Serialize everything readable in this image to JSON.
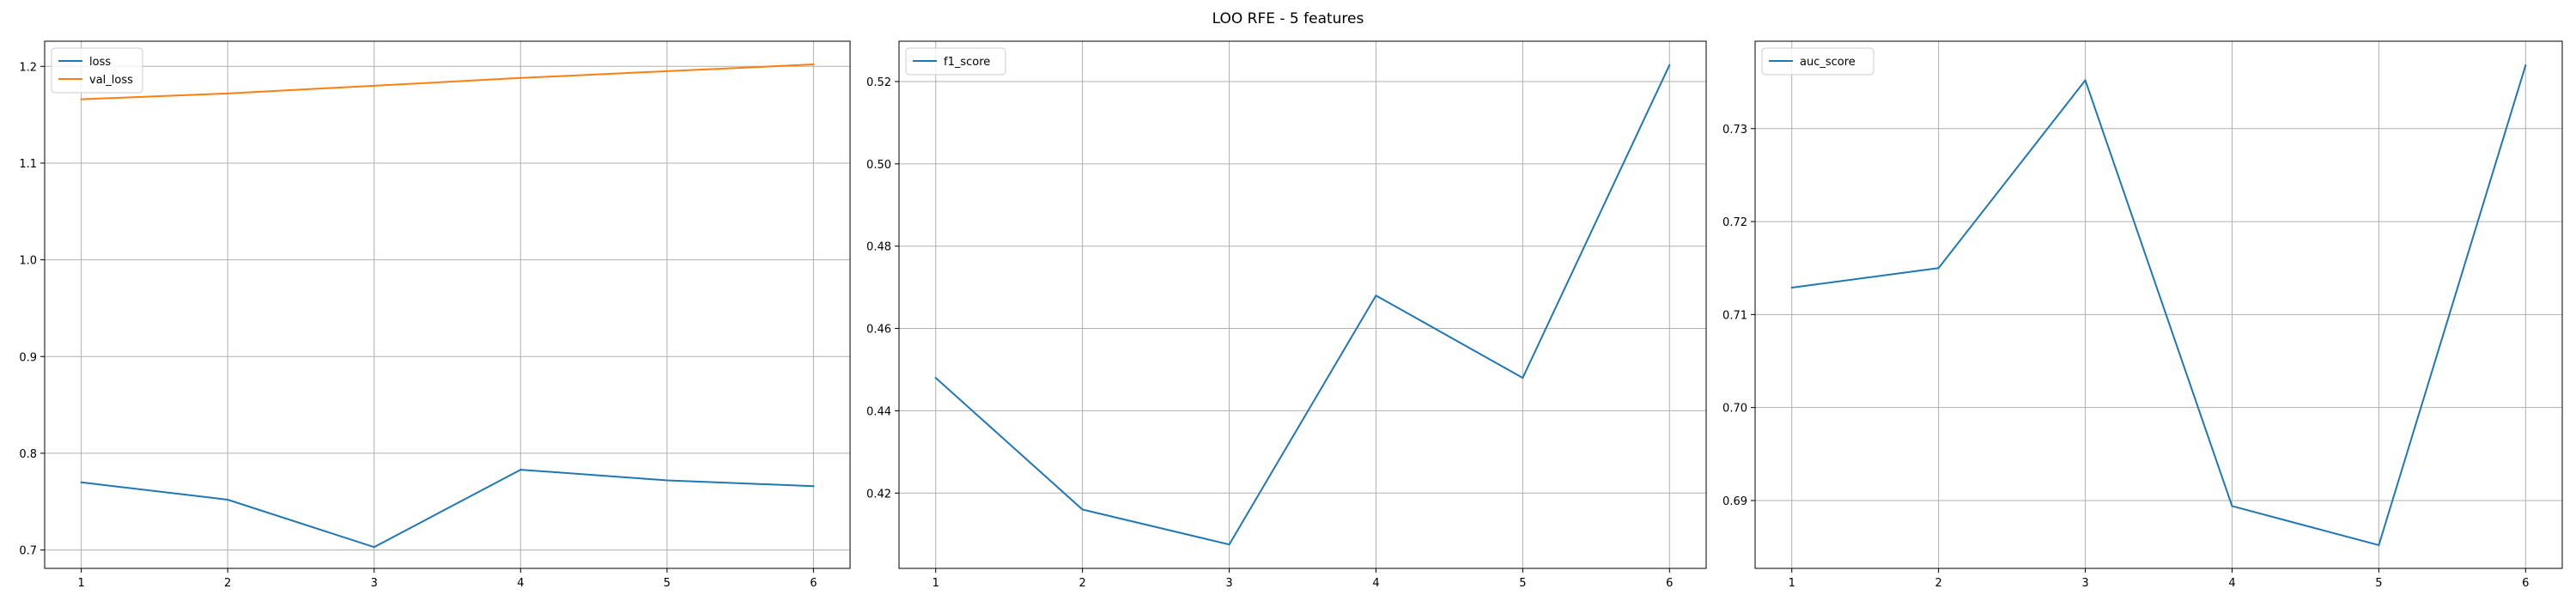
{
  "figure": {
    "suptitle": "LOO RFE - 5 features"
  },
  "colors": {
    "blue": "#1f77b4",
    "orange": "#ff7f0e",
    "grid": "#b0b0b0"
  },
  "chart_data": [
    {
      "type": "line",
      "x": [
        1,
        2,
        3,
        4,
        5,
        6
      ],
      "series": [
        {
          "name": "loss",
          "color": "#1f77b4",
          "values": [
            0.77,
            0.752,
            0.703,
            0.783,
            0.772,
            0.766
          ]
        },
        {
          "name": "val_loss",
          "color": "#ff7f0e",
          "values": [
            1.166,
            1.172,
            1.18,
            1.188,
            1.195,
            1.202
          ]
        }
      ],
      "xticks": [
        1,
        2,
        3,
        4,
        5,
        6
      ],
      "yticks": [
        0.7,
        0.8,
        0.9,
        1.0,
        1.1,
        1.2
      ],
      "ytick_labels": [
        "0.7",
        "0.8",
        "0.9",
        "1.0",
        "1.1",
        "1.2"
      ],
      "xlim": [
        0.75,
        6.25
      ],
      "ylim": [
        0.681,
        1.226
      ],
      "grid": true,
      "legend": "top-left"
    },
    {
      "type": "line",
      "x": [
        1,
        2,
        3,
        4,
        5,
        6
      ],
      "series": [
        {
          "name": "f1_score",
          "color": "#1f77b4",
          "values": [
            0.448,
            0.416,
            0.4075,
            0.468,
            0.448,
            0.524
          ]
        }
      ],
      "xticks": [
        1,
        2,
        3,
        4,
        5,
        6
      ],
      "yticks": [
        0.42,
        0.44,
        0.46,
        0.48,
        0.5,
        0.52
      ],
      "ytick_labels": [
        "0.42",
        "0.44",
        "0.46",
        "0.48",
        "0.50",
        "0.52"
      ],
      "xlim": [
        0.75,
        6.25
      ],
      "ylim": [
        0.4017,
        0.5298
      ],
      "grid": true,
      "legend": "top-left"
    },
    {
      "type": "line",
      "x": [
        1,
        2,
        3,
        4,
        5,
        6
      ],
      "series": [
        {
          "name": "auc_score",
          "color": "#1f77b4",
          "values": [
            0.7129,
            0.715,
            0.7352,
            0.6894,
            0.6852,
            0.7368
          ]
        }
      ],
      "xticks": [
        1,
        2,
        3,
        4,
        5,
        6
      ],
      "yticks": [
        0.69,
        0.7,
        0.71,
        0.72,
        0.73
      ],
      "ytick_labels": [
        "0.69",
        "0.70",
        "0.71",
        "0.72",
        "0.73"
      ],
      "xlim": [
        0.75,
        6.25
      ],
      "ylim": [
        0.6827,
        0.7394
      ],
      "grid": true,
      "legend": "top-left"
    }
  ]
}
